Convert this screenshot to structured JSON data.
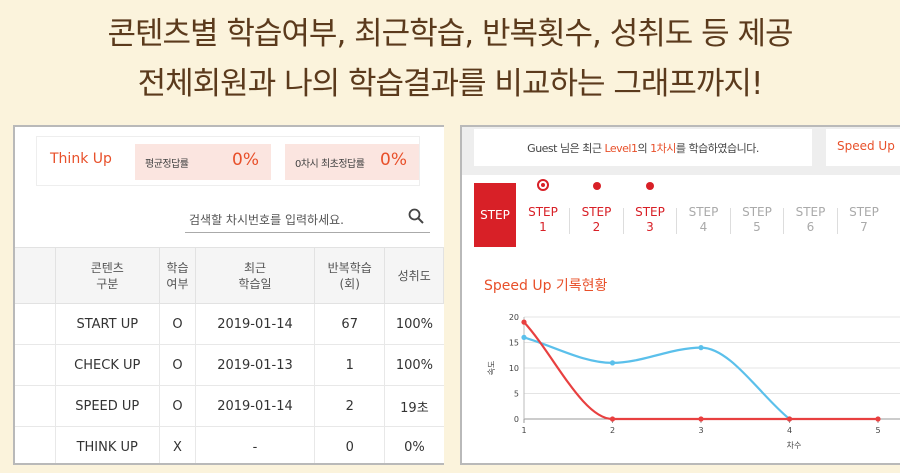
{
  "headline": {
    "line1": "콘텐츠별 학습여부, 최근학습, 반복횟수, 성취도 등 제공",
    "line2": "전체회원과 나의 학습결과를 비교하는 그래프까지!"
  },
  "left": {
    "title": "Think Up",
    "avg_label": "평균정답률",
    "avg_value": "0%",
    "first_label": "0차시 최초정답률",
    "first_value": "0%",
    "search_placeholder": "검색할 차시번호를 입력하세요.",
    "table": {
      "headers": [
        "콘텐츠\n구분",
        "학습\n여부",
        "최근\n학습일",
        "반복학습\n(회)",
        "성취도"
      ],
      "rows": [
        [
          "START UP",
          "O",
          "2019-01-14",
          "67",
          "100%"
        ],
        [
          "CHECK UP",
          "O",
          "2019-01-13",
          "1",
          "100%"
        ],
        [
          "SPEED UP",
          "O",
          "2019-01-14",
          "2",
          "19초"
        ],
        [
          "THINK UP",
          "X",
          "-",
          "0",
          "0%"
        ]
      ]
    }
  },
  "right": {
    "guest_pre": "Guest 님은 최근 ",
    "guest_level": "Level1",
    "guest_mid": "의 ",
    "guest_lesson": "1차시",
    "guest_post": "를 학습하였습니다.",
    "speed_tab": "Speed Up",
    "step_label": "STEP",
    "steps": [
      {
        "l1": "STEP",
        "l2": "1",
        "done": true,
        "current": true
      },
      {
        "l1": "STEP",
        "l2": "2",
        "done": true,
        "current": false
      },
      {
        "l1": "STEP",
        "l2": "3",
        "done": true,
        "current": false
      },
      {
        "l1": "STEP",
        "l2": "4",
        "done": false,
        "current": false
      },
      {
        "l1": "STEP",
        "l2": "5",
        "done": false,
        "current": false
      },
      {
        "l1": "STEP",
        "l2": "6",
        "done": false,
        "current": false
      },
      {
        "l1": "STEP",
        "l2": "7",
        "done": false,
        "current": false
      }
    ],
    "chart_title": "Speed Up 기록현황"
  },
  "colors": {
    "accent": "#e8502a",
    "step_red": "#d82027",
    "series_blue": "#5bc0eb",
    "series_red": "#e84040"
  },
  "chart_data": {
    "type": "line",
    "title": "Speed Up 기록현황",
    "xlabel": "차수",
    "ylabel": "속도",
    "x": [
      1,
      2,
      3,
      4,
      5
    ],
    "xlim": [
      1,
      5
    ],
    "ylim": [
      0,
      20
    ],
    "yticks": [
      0,
      5,
      10,
      15,
      20
    ],
    "series": [
      {
        "values": [
          16,
          11,
          14,
          0,
          null
        ],
        "color": "#5bc0eb"
      },
      {
        "values": [
          19,
          0,
          0,
          0,
          0
        ],
        "color": "#e84040"
      }
    ]
  }
}
